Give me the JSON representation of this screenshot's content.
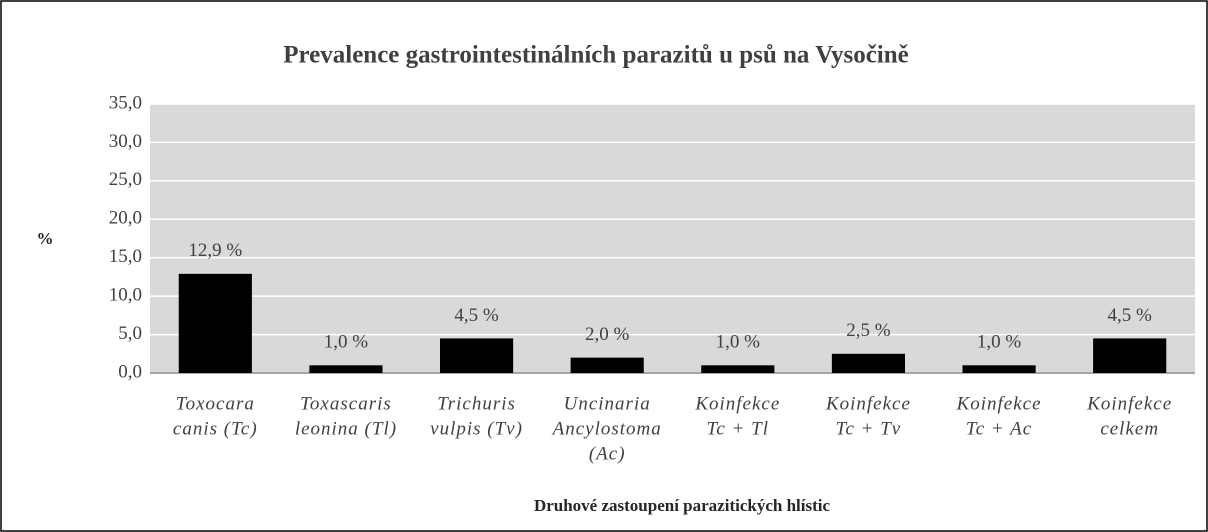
{
  "chart_data": {
    "type": "bar",
    "title": "Prevalence gastrointestinálních parazitů u psů na Vysočině",
    "y_label": "%",
    "x_label": "Druhové zastoupení parazitických hlístic",
    "categories": [
      [
        "Toxocara",
        "canis (Tc)"
      ],
      [
        "Toxascaris",
        "leonina (Tl)"
      ],
      [
        "Trichuris",
        "vulpis (Tv)"
      ],
      [
        "Uncinaria",
        "Ancylostoma",
        "(Ac)"
      ],
      [
        "Koinfekce",
        "Tc + Tl"
      ],
      [
        "Koinfekce",
        "Tc + Tv"
      ],
      [
        "Koinfekce",
        "Tc + Ac"
      ],
      [
        "Koinfekce",
        "celkem"
      ]
    ],
    "values": [
      12.9,
      1.0,
      4.5,
      2.0,
      1.0,
      2.5,
      1.0,
      4.5
    ],
    "value_labels": [
      "12,9 %",
      "1,0 %",
      "4,5 %",
      "2,0 %",
      "1,0 %",
      "2,5 %",
      "1,0 %",
      "4,5 %"
    ],
    "color": "#000000",
    "ylim": [
      0,
      35
    ],
    "yticks": [
      {
        "value": 0,
        "label": "0,0"
      },
      {
        "value": 5,
        "label": "5,0"
      },
      {
        "value": 10,
        "label": "10,0"
      },
      {
        "value": 15,
        "label": "15,0"
      },
      {
        "value": 20,
        "label": "20,0"
      },
      {
        "value": 25,
        "label": "25,0"
      },
      {
        "value": 30,
        "label": "30,0"
      },
      {
        "value": 35,
        "label": "35,0"
      }
    ],
    "grid": true
  }
}
